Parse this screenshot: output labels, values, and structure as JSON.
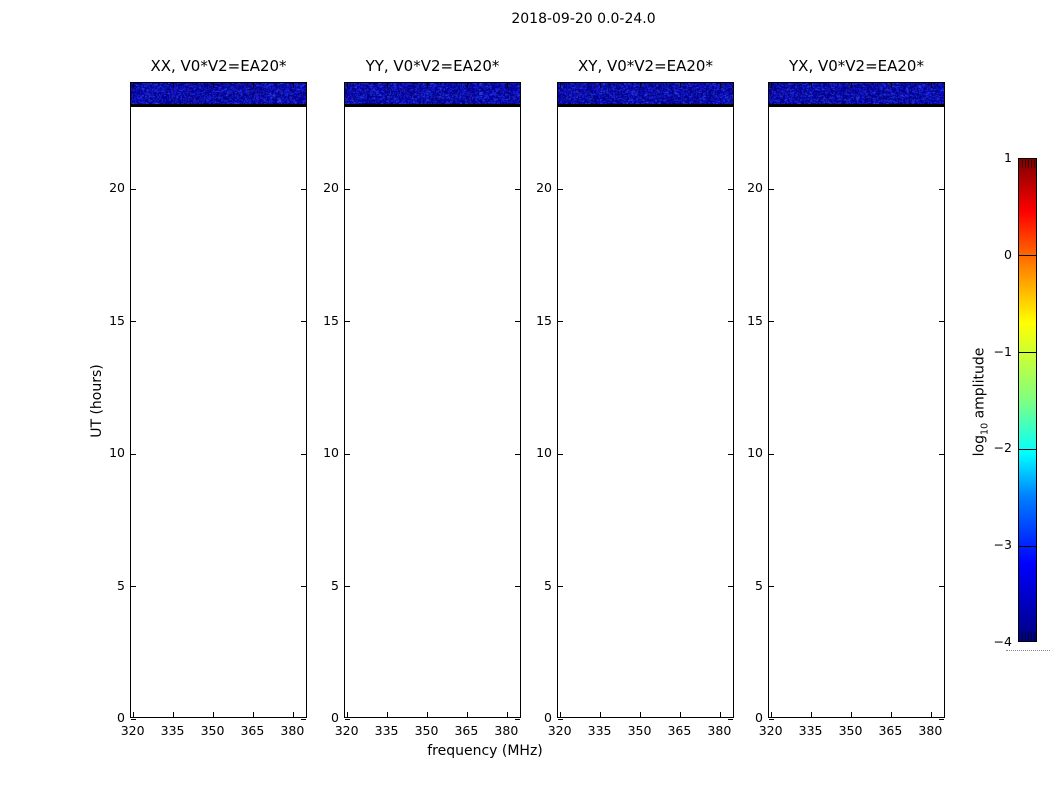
{
  "figure": {
    "title": "2018-09-20 0.0-24.0",
    "background_color": "#ffffff"
  },
  "axes": {
    "xlabel": "frequency (MHz)",
    "ylabel": "UT (hours)"
  },
  "colorbar": {
    "label_pre": "log",
    "label_sub": "10",
    "label_post": " amplitude",
    "tick_labels": [
      "1",
      "0",
      "−1",
      "−2",
      "−3",
      "−4"
    ]
  },
  "chart_data": {
    "type": "heatmap",
    "title": "2018-09-20 0.0-24.0",
    "panels": [
      {
        "title": "XX, V0*V2=EA20*",
        "polarization": "XX",
        "baseline": "V0*V2=EA20*"
      },
      {
        "title": "YY, V0*V2=EA20*",
        "polarization": "YY",
        "baseline": "V0*V2=EA20*"
      },
      {
        "title": "XY, V0*V2=EA20*",
        "polarization": "XY",
        "baseline": "V0*V2=EA20*"
      },
      {
        "title": "YX, V0*V2=EA20*",
        "polarization": "YX",
        "baseline": "V0*V2=EA20*"
      }
    ],
    "x_axis": {
      "label": "frequency (MHz)",
      "range_mhz": [
        319,
        385.5
      ],
      "ticks": [
        320,
        335,
        350,
        365,
        380
      ]
    },
    "y_axis": {
      "label": "UT (hours)",
      "range_hours": [
        0,
        24
      ],
      "ticks": [
        0,
        5,
        10,
        15,
        20
      ]
    },
    "colorbar": {
      "label": "log10 amplitude",
      "ticks": [
        1,
        0,
        -1,
        -2,
        -3,
        -4
      ],
      "colormap": "jet",
      "top_color": "#7f0000",
      "bottom_color": "#000080"
    },
    "data_content": {
      "band": {
        "ut_start": 23.2,
        "ut_end": 24.0,
        "freq_start_mhz": 319,
        "freq_end_mhz": 385.5,
        "approx_log10_amplitude": [
          -4.0,
          -3.3
        ],
        "base_color": "#000087",
        "appearance": "dark navy with speckled brighter blue noise, present in all 4 panels"
      },
      "flagged_row": {
        "ut_start": 23.05,
        "ut_end": 23.2,
        "color": "#000000",
        "appearance": "solid black row under the band"
      },
      "rest": {
        "ut_start": 0,
        "ut_end": 23.05,
        "appearance": "blank / no data (white)"
      }
    },
    "grid": false,
    "legend": false
  }
}
